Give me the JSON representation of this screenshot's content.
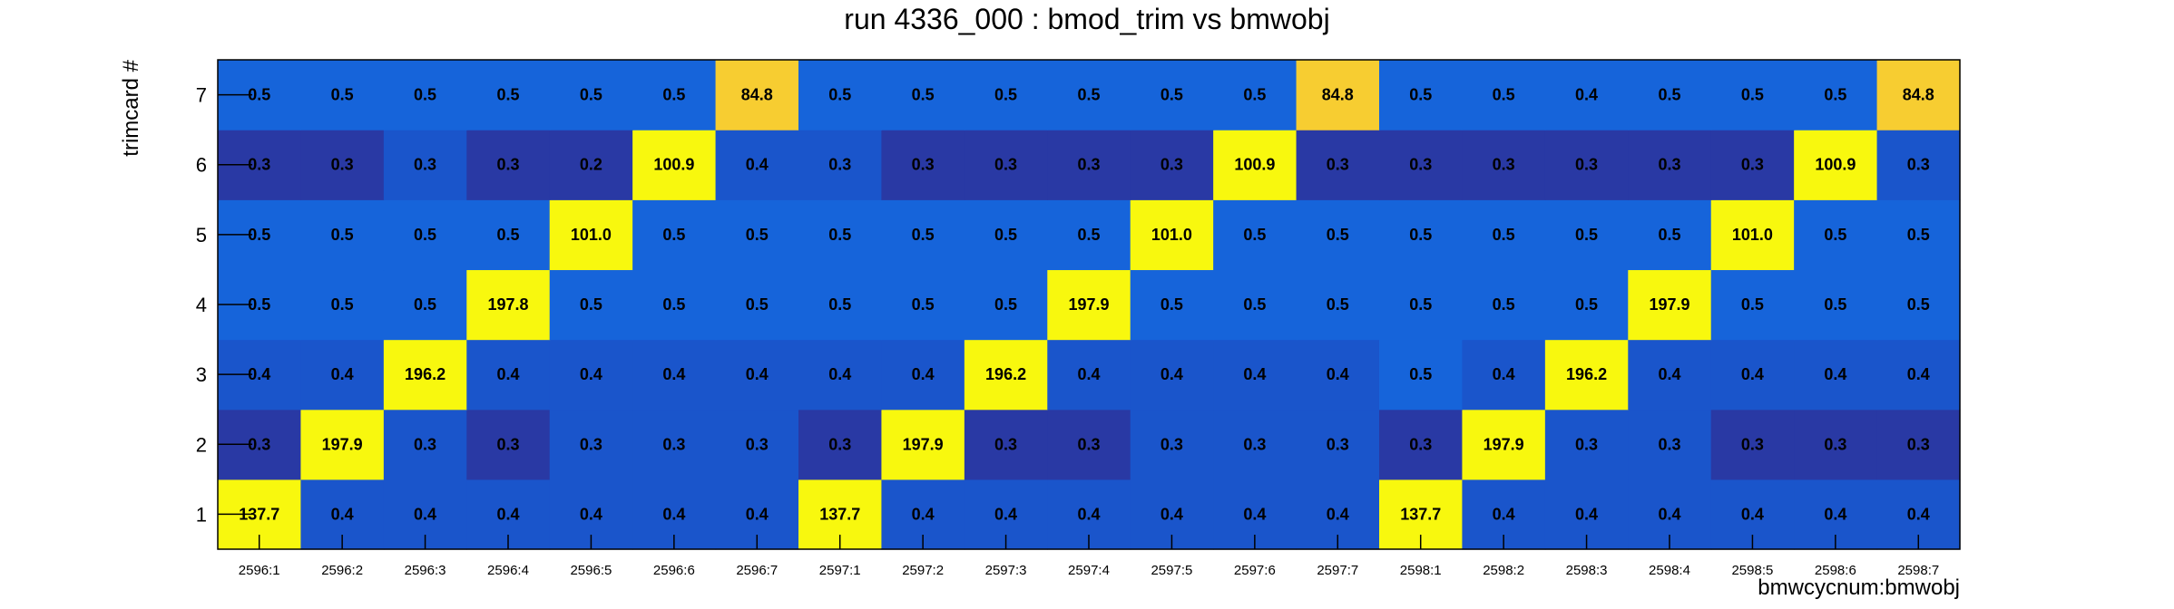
{
  "chart_data": {
    "type": "heatmap",
    "title": "run 4336_000 : bmod_trim vs bmwobj",
    "xlabel": "bmwcycnum:bmwobj",
    "ylabel": "trimcard #",
    "x_categories": [
      "2596:1",
      "2596:2",
      "2596:3",
      "2596:4",
      "2596:5",
      "2596:6",
      "2596:7",
      "2597:1",
      "2597:2",
      "2597:3",
      "2597:4",
      "2597:5",
      "2597:6",
      "2597:7",
      "2598:1",
      "2598:2",
      "2598:3",
      "2598:4",
      "2598:5",
      "2598:6",
      "2598:7"
    ],
    "y_categories": [
      "1",
      "2",
      "3",
      "4",
      "5",
      "6",
      "7"
    ],
    "value_labels": [
      [
        "137.7",
        "0.4",
        "0.4",
        "0.4",
        "0.4",
        "0.4",
        "0.4",
        "137.7",
        "0.4",
        "0.4",
        "0.4",
        "0.4",
        "0.4",
        "0.4",
        "137.7",
        "0.4",
        "0.4",
        "0.4",
        "0.4",
        "0.4",
        "0.4"
      ],
      [
        "0.3",
        "197.9",
        "0.3",
        "0.3",
        "0.3",
        "0.3",
        "0.3",
        "0.3",
        "197.9",
        "0.3",
        "0.3",
        "0.3",
        "0.3",
        "0.3",
        "0.3",
        "197.9",
        "0.3",
        "0.3",
        "0.3",
        "0.3",
        "0.3"
      ],
      [
        "0.4",
        "0.4",
        "196.2",
        "0.4",
        "0.4",
        "0.4",
        "0.4",
        "0.4",
        "0.4",
        "196.2",
        "0.4",
        "0.4",
        "0.4",
        "0.4",
        "0.5",
        "0.4",
        "196.2",
        "0.4",
        "0.4",
        "0.4",
        "0.4"
      ],
      [
        "0.5",
        "0.5",
        "0.5",
        "197.8",
        "0.5",
        "0.5",
        "0.5",
        "0.5",
        "0.5",
        "0.5",
        "197.9",
        "0.5",
        "0.5",
        "0.5",
        "0.5",
        "0.5",
        "0.5",
        "197.9",
        "0.5",
        "0.5",
        "0.5"
      ],
      [
        "0.5",
        "0.5",
        "0.5",
        "0.5",
        "101.0",
        "0.5",
        "0.5",
        "0.5",
        "0.5",
        "0.5",
        "0.5",
        "101.0",
        "0.5",
        "0.5",
        "0.5",
        "0.5",
        "0.5",
        "0.5",
        "101.0",
        "0.5",
        "0.5"
      ],
      [
        "0.3",
        "0.3",
        "0.3",
        "0.3",
        "0.2",
        "100.9",
        "0.4",
        "0.3",
        "0.3",
        "0.3",
        "0.3",
        "0.3",
        "100.9",
        "0.3",
        "0.3",
        "0.3",
        "0.3",
        "0.3",
        "0.3",
        "100.9",
        "0.3"
      ],
      [
        "0.5",
        "0.5",
        "0.5",
        "0.5",
        "0.5",
        "0.5",
        "84.8",
        "0.5",
        "0.5",
        "0.5",
        "0.5",
        "0.5",
        "0.5",
        "84.8",
        "0.5",
        "0.5",
        "0.4",
        "0.5",
        "0.5",
        "0.5",
        "84.8"
      ]
    ],
    "shades": [
      [
        "yellow",
        "medium",
        "medium",
        "medium",
        "medium",
        "medium",
        "medium",
        "yellow",
        "medium",
        "medium",
        "medium",
        "medium",
        "medium",
        "medium",
        "yellow",
        "medium",
        "medium",
        "medium",
        "medium",
        "medium",
        "medium"
      ],
      [
        "dark",
        "yellow",
        "medium",
        "dark",
        "medium",
        "medium",
        "medium",
        "dark",
        "yellow",
        "dark",
        "dark",
        "medium",
        "medium",
        "medium",
        "dark",
        "yellow",
        "medium",
        "medium",
        "dark",
        "dark",
        "dark"
      ],
      [
        "medium",
        "medium",
        "yellow",
        "medium",
        "medium",
        "medium",
        "medium",
        "medium",
        "medium",
        "yellow",
        "medium",
        "medium",
        "medium",
        "medium",
        "light",
        "medium",
        "yellow",
        "medium",
        "medium",
        "medium",
        "medium"
      ],
      [
        "light",
        "light",
        "light",
        "yellow",
        "light",
        "light",
        "light",
        "light",
        "light",
        "light",
        "yellow",
        "light",
        "light",
        "light",
        "light",
        "light",
        "light",
        "yellow",
        "light",
        "light",
        "light"
      ],
      [
        "light",
        "light",
        "light",
        "light",
        "yellow",
        "light",
        "light",
        "light",
        "light",
        "light",
        "light",
        "yellow",
        "light",
        "light",
        "light",
        "light",
        "light",
        "light",
        "yellow",
        "light",
        "light"
      ],
      [
        "dark",
        "dark",
        "medium",
        "dark",
        "dark",
        "yellow",
        "medium",
        "medium",
        "dark",
        "dark",
        "dark",
        "dark",
        "yellow",
        "dark",
        "dark",
        "dark",
        "dark",
        "dark",
        "dark",
        "yellow",
        "medium"
      ],
      [
        "light",
        "light",
        "light",
        "light",
        "light",
        "light",
        "orange",
        "light",
        "light",
        "light",
        "light",
        "light",
        "light",
        "orange",
        "light",
        "light",
        "light",
        "light",
        "light",
        "light",
        "orange"
      ]
    ],
    "palette": {
      "yellow": "#f8f80e",
      "orange": "#f7cd31",
      "light": "#1664da",
      "medium": "#1a55cb",
      "dark": "#2939a4"
    },
    "grid": false
  }
}
